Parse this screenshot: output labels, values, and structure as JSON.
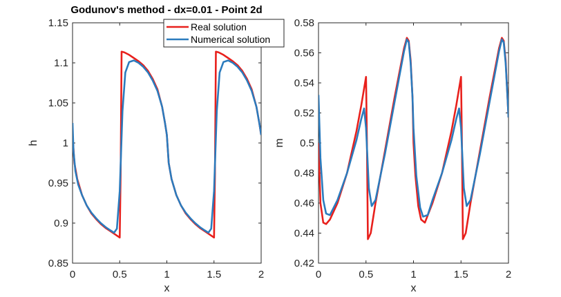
{
  "chart_data": [
    {
      "type": "line",
      "title": "Godunov's method - dx=0.01 - Point 2d",
      "xlabel": "x",
      "ylabel": "h",
      "xlim": [
        0,
        2
      ],
      "ylim": [
        0.85,
        1.15
      ],
      "xticks": [
        "0",
        "0.5",
        "1",
        "1.5",
        "2"
      ],
      "yticks": [
        "0.85",
        "0.9",
        "0.95",
        "1",
        "1.05",
        "1.1",
        "1.15"
      ],
      "grid": false,
      "legend": "top-right",
      "series": [
        {
          "name": "Real solution",
          "color": "#e8201c",
          "points": [
            [
              0,
              1.01
            ],
            [
              0.02,
              0.975
            ],
            [
              0.05,
              0.955
            ],
            [
              0.1,
              0.935
            ],
            [
              0.15,
              0.922
            ],
            [
              0.2,
              0.912
            ],
            [
              0.25,
              0.905
            ],
            [
              0.3,
              0.899
            ],
            [
              0.35,
              0.894
            ],
            [
              0.4,
              0.89
            ],
            [
              0.45,
              0.886
            ],
            [
              0.5,
              0.882
            ],
            [
              0.51,
              0.96
            ],
            [
              0.52,
              1.114
            ],
            [
              0.55,
              1.113
            ],
            [
              0.6,
              1.11
            ],
            [
              0.65,
              1.106
            ],
            [
              0.7,
              1.102
            ],
            [
              0.75,
              1.097
            ],
            [
              0.8,
              1.09
            ],
            [
              0.85,
              1.08
            ],
            [
              0.9,
              1.067
            ],
            [
              0.95,
              1.045
            ],
            [
              0.98,
              1.025
            ],
            [
              1,
              1.01
            ],
            [
              1.02,
              0.975
            ],
            [
              1.05,
              0.955
            ],
            [
              1.1,
              0.935
            ],
            [
              1.15,
              0.922
            ],
            [
              1.2,
              0.912
            ],
            [
              1.25,
              0.905
            ],
            [
              1.3,
              0.899
            ],
            [
              1.35,
              0.894
            ],
            [
              1.4,
              0.89
            ],
            [
              1.45,
              0.886
            ],
            [
              1.5,
              0.882
            ],
            [
              1.51,
              0.96
            ],
            [
              1.52,
              1.114
            ],
            [
              1.55,
              1.113
            ],
            [
              1.6,
              1.11
            ],
            [
              1.65,
              1.106
            ],
            [
              1.7,
              1.102
            ],
            [
              1.75,
              1.097
            ],
            [
              1.8,
              1.09
            ],
            [
              1.85,
              1.08
            ],
            [
              1.9,
              1.067
            ],
            [
              1.95,
              1.045
            ],
            [
              1.98,
              1.025
            ],
            [
              2,
              1.01
            ]
          ]
        },
        {
          "name": "Numerical solution",
          "color": "#2b7bbd",
          "points": [
            [
              0,
              1.025
            ],
            [
              0.01,
              0.99
            ],
            [
              0.03,
              0.965
            ],
            [
              0.06,
              0.948
            ],
            [
              0.1,
              0.935
            ],
            [
              0.15,
              0.922
            ],
            [
              0.2,
              0.913
            ],
            [
              0.25,
              0.906
            ],
            [
              0.3,
              0.9
            ],
            [
              0.35,
              0.895
            ],
            [
              0.4,
              0.891
            ],
            [
              0.44,
              0.888
            ],
            [
              0.47,
              0.893
            ],
            [
              0.5,
              0.94
            ],
            [
              0.53,
              1.04
            ],
            [
              0.56,
              1.088
            ],
            [
              0.6,
              1.101
            ],
            [
              0.65,
              1.103
            ],
            [
              0.7,
              1.1
            ],
            [
              0.75,
              1.095
            ],
            [
              0.8,
              1.088
            ],
            [
              0.85,
              1.078
            ],
            [
              0.9,
              1.065
            ],
            [
              0.95,
              1.045
            ],
            [
              0.98,
              1.025
            ],
            [
              1,
              1.01
            ],
            [
              1.02,
              0.975
            ],
            [
              1.05,
              0.955
            ],
            [
              1.1,
              0.935
            ],
            [
              1.15,
              0.922
            ],
            [
              1.2,
              0.913
            ],
            [
              1.25,
              0.906
            ],
            [
              1.3,
              0.9
            ],
            [
              1.35,
              0.895
            ],
            [
              1.4,
              0.891
            ],
            [
              1.44,
              0.888
            ],
            [
              1.47,
              0.893
            ],
            [
              1.5,
              0.94
            ],
            [
              1.53,
              1.04
            ],
            [
              1.56,
              1.088
            ],
            [
              1.6,
              1.101
            ],
            [
              1.65,
              1.103
            ],
            [
              1.7,
              1.1
            ],
            [
              1.75,
              1.095
            ],
            [
              1.8,
              1.088
            ],
            [
              1.85,
              1.078
            ],
            [
              1.9,
              1.065
            ],
            [
              1.95,
              1.045
            ],
            [
              1.98,
              1.025
            ],
            [
              2,
              1.01
            ]
          ]
        }
      ]
    },
    {
      "type": "line",
      "title": "",
      "xlabel": "x",
      "ylabel": "m",
      "xlim": [
        0,
        2
      ],
      "ylim": [
        0.42,
        0.58
      ],
      "xticks": [
        "0",
        "0.5",
        "1",
        "1.5",
        "2"
      ],
      "yticks": [
        "0.42",
        "0.44",
        "0.46",
        "0.48",
        "0.5",
        "0.52",
        "0.54",
        "0.56",
        "0.58"
      ],
      "grid": false,
      "series": [
        {
          "name": "Real solution",
          "color": "#e8201c",
          "points": [
            [
              0,
              0.5
            ],
            [
              0.02,
              0.46
            ],
            [
              0.05,
              0.447
            ],
            [
              0.08,
              0.446
            ],
            [
              0.12,
              0.449
            ],
            [
              0.2,
              0.46
            ],
            [
              0.3,
              0.48
            ],
            [
              0.4,
              0.508
            ],
            [
              0.45,
              0.525
            ],
            [
              0.5,
              0.544
            ],
            [
              0.51,
              0.5
            ],
            [
              0.52,
              0.436
            ],
            [
              0.55,
              0.44
            ],
            [
              0.6,
              0.46
            ],
            [
              0.7,
              0.495
            ],
            [
              0.8,
              0.53
            ],
            [
              0.9,
              0.563
            ],
            [
              0.93,
              0.57
            ],
            [
              0.95,
              0.568
            ],
            [
              0.97,
              0.555
            ],
            [
              0.99,
              0.53
            ],
            [
              1,
              0.5
            ],
            [
              1.02,
              0.478
            ],
            [
              1.05,
              0.458
            ],
            [
              1.08,
              0.449
            ],
            [
              1.12,
              0.447
            ],
            [
              1.2,
              0.46
            ],
            [
              1.3,
              0.48
            ],
            [
              1.4,
              0.508
            ],
            [
              1.45,
              0.525
            ],
            [
              1.5,
              0.544
            ],
            [
              1.51,
              0.5
            ],
            [
              1.52,
              0.436
            ],
            [
              1.55,
              0.44
            ],
            [
              1.6,
              0.46
            ],
            [
              1.7,
              0.495
            ],
            [
              1.8,
              0.53
            ],
            [
              1.9,
              0.563
            ],
            [
              1.93,
              0.57
            ],
            [
              1.95,
              0.568
            ],
            [
              1.97,
              0.555
            ],
            [
              1.99,
              0.53
            ],
            [
              2,
              0.517
            ]
          ]
        },
        {
          "name": "Numerical solution",
          "color": "#2b7bbd",
          "points": [
            [
              0,
              0.532
            ],
            [
              0.02,
              0.49
            ],
            [
              0.05,
              0.462
            ],
            [
              0.08,
              0.453
            ],
            [
              0.12,
              0.452
            ],
            [
              0.2,
              0.462
            ],
            [
              0.3,
              0.48
            ],
            [
              0.4,
              0.502
            ],
            [
              0.45,
              0.516
            ],
            [
              0.48,
              0.523
            ],
            [
              0.5,
              0.51
            ],
            [
              0.53,
              0.47
            ],
            [
              0.56,
              0.458
            ],
            [
              0.6,
              0.462
            ],
            [
              0.7,
              0.493
            ],
            [
              0.8,
              0.527
            ],
            [
              0.9,
              0.561
            ],
            [
              0.93,
              0.569
            ],
            [
              0.95,
              0.567
            ],
            [
              0.97,
              0.553
            ],
            [
              0.99,
              0.53
            ],
            [
              1,
              0.51
            ],
            [
              1.03,
              0.478
            ],
            [
              1.07,
              0.457
            ],
            [
              1.1,
              0.451
            ],
            [
              1.15,
              0.452
            ],
            [
              1.2,
              0.462
            ],
            [
              1.3,
              0.48
            ],
            [
              1.4,
              0.502
            ],
            [
              1.45,
              0.516
            ],
            [
              1.48,
              0.523
            ],
            [
              1.5,
              0.51
            ],
            [
              1.53,
              0.47
            ],
            [
              1.56,
              0.458
            ],
            [
              1.6,
              0.462
            ],
            [
              1.7,
              0.493
            ],
            [
              1.8,
              0.527
            ],
            [
              1.9,
              0.561
            ],
            [
              1.93,
              0.569
            ],
            [
              1.95,
              0.567
            ],
            [
              1.97,
              0.553
            ],
            [
              1.99,
              0.53
            ],
            [
              2,
              0.517
            ]
          ]
        }
      ]
    }
  ]
}
